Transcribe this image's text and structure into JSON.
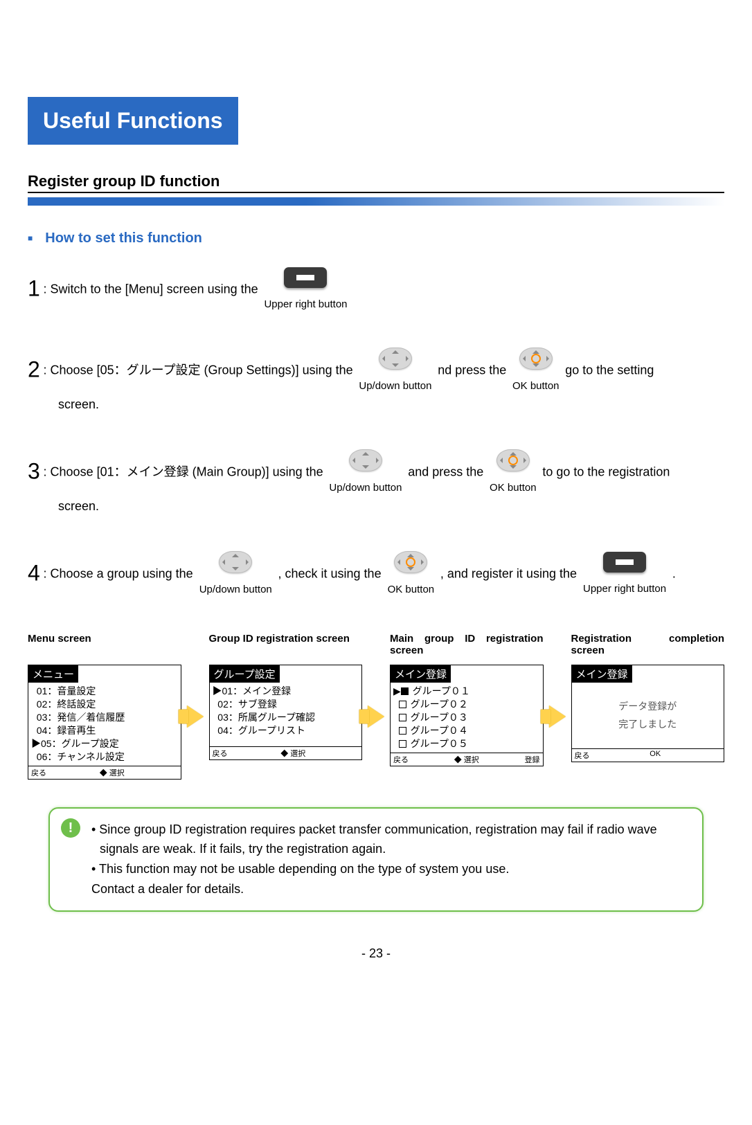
{
  "chapter_title": "Useful Functions",
  "section_title": "Register group ID function",
  "bullet_heading": "How to set this function",
  "steps": {
    "s1": {
      "num": "1",
      "text_a": ": Switch to the [Menu] screen using the",
      "btn1_label": "Upper right button"
    },
    "s2": {
      "num": "2",
      "text_a": ": Choose [05：グループ設定 (Group Settings)] using the",
      "text_b": "nd press the",
      "text_c": "go to the setting",
      "indent": "screen.",
      "btn1_label": "Up/down button",
      "btn2_label": "OK button"
    },
    "s3": {
      "num": "3",
      "text_a": ": Choose [01：メイン登録 (Main Group)] using the",
      "text_b": "  and press the",
      "text_c": "  to go to the registration",
      "indent": "screen.",
      "btn1_label": "Up/down button",
      "btn2_label": "OK button"
    },
    "s4": {
      "num": "4",
      "text_a": ": Choose a group using the  ",
      "text_b": " , check it using the  ",
      "text_c": " , and register it using the ",
      "dot": " .",
      "btn1_label": "Up/down button",
      "btn2_label": "OK button",
      "btn3_label": "Upper right button"
    }
  },
  "screens": {
    "menu": {
      "title": "Menu screen",
      "header": "メニュー",
      "items": [
        "01：音量設定",
        "02：終話設定",
        "03：発信／着信履歴",
        "04：録音再生",
        "05：グループ設定",
        "06：チャンネル設定"
      ],
      "selected_index": 4,
      "soft_left": "戻る",
      "soft_mid": "◆ 選択",
      "soft_right": ""
    },
    "group_reg": {
      "title": "Group ID registration screen",
      "header": "グループ設定",
      "items": [
        "01：メイン登録",
        "02：サブ登録",
        "03：所属グループ確認",
        "04：グループリスト"
      ],
      "selected_index": 0,
      "soft_left": "戻る",
      "soft_mid": "◆ 選択",
      "soft_right": ""
    },
    "main_reg": {
      "title": "Main group ID registration screen",
      "header": "メイン登録",
      "items": [
        "グループ０１",
        "グループ０２",
        "グループ０３",
        "グループ０４",
        "グループ０５"
      ],
      "checked_index": 0,
      "soft_left": "戻る",
      "soft_mid": "◆ 選択",
      "soft_right": "登録"
    },
    "complete": {
      "title": "Registration completion screen",
      "header": "メイン登録",
      "message_line1": "データ登録が",
      "message_line2": "完了しました",
      "soft_left": "戻る",
      "soft_mid": "OK",
      "soft_right": ""
    }
  },
  "note": {
    "line1": "• Since group ID registration requires packet transfer communication, registration may fail if radio wave signals are weak. If it fails, try the registration again.",
    "line2": "• This function may not be usable depending on the type of system you use.",
    "line3": "  Contact a dealer for details."
  },
  "page_number": "- 23 -",
  "colors": {
    "accent": "#2a6ac2",
    "note_border": "#6fbf4b",
    "arrow_fill": "#ffd24d"
  }
}
